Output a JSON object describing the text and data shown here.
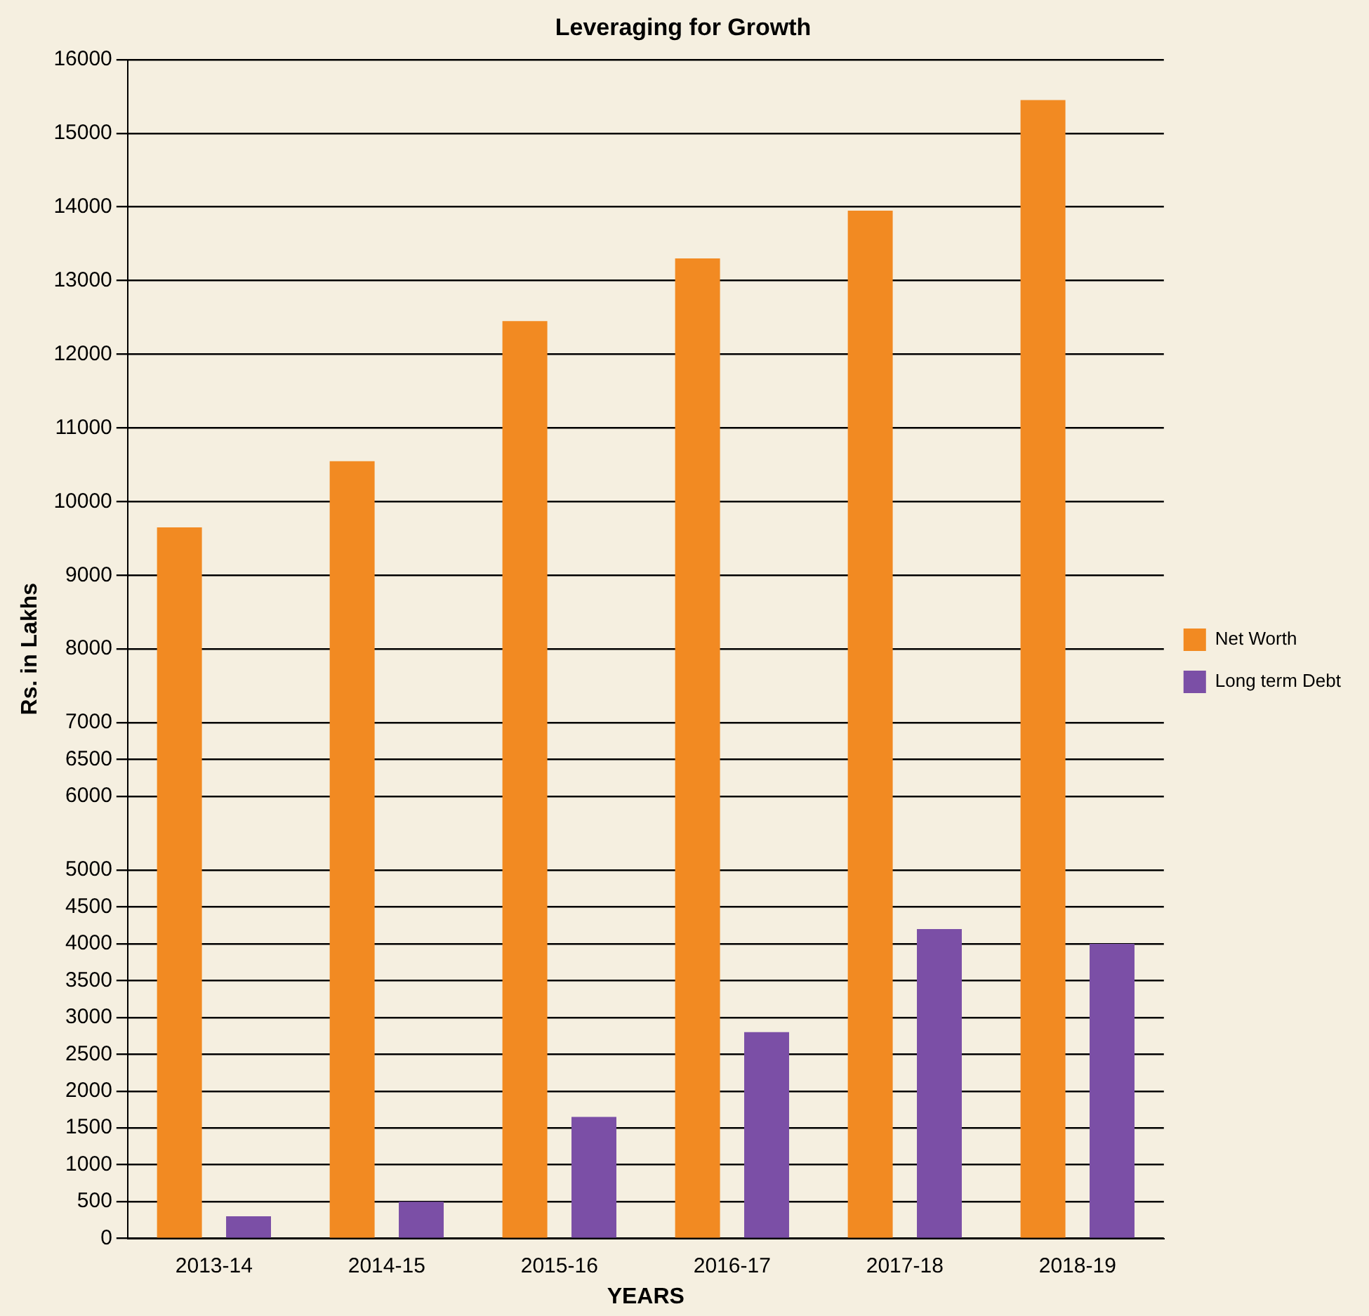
{
  "chart_data": {
    "type": "bar",
    "title": "Leveraging for Growth",
    "xlabel": "YEARS",
    "ylabel": "Rs. in Lakhs",
    "categories": [
      "2013-14",
      "2014-15",
      "2015-16",
      "2016-17",
      "2017-18",
      "2018-19"
    ],
    "series": [
      {
        "name": "Net Worth",
        "color": "#f28a22",
        "values": [
          9650,
          10550,
          12450,
          13300,
          13950,
          15450
        ]
      },
      {
        "name": "Long term Debt",
        "color": "#7b4fa6",
        "values": [
          300,
          500,
          1650,
          2800,
          4200,
          4000
        ]
      }
    ],
    "ylim": [
      0,
      16000
    ],
    "yticks": [
      0,
      500,
      1000,
      1500,
      2000,
      2500,
      3000,
      3500,
      4000,
      4500,
      5000,
      6000,
      6500,
      7000,
      8000,
      9000,
      10000,
      11000,
      12000,
      13000,
      14000,
      15000,
      16000
    ],
    "grid": "y",
    "legend": "right"
  }
}
